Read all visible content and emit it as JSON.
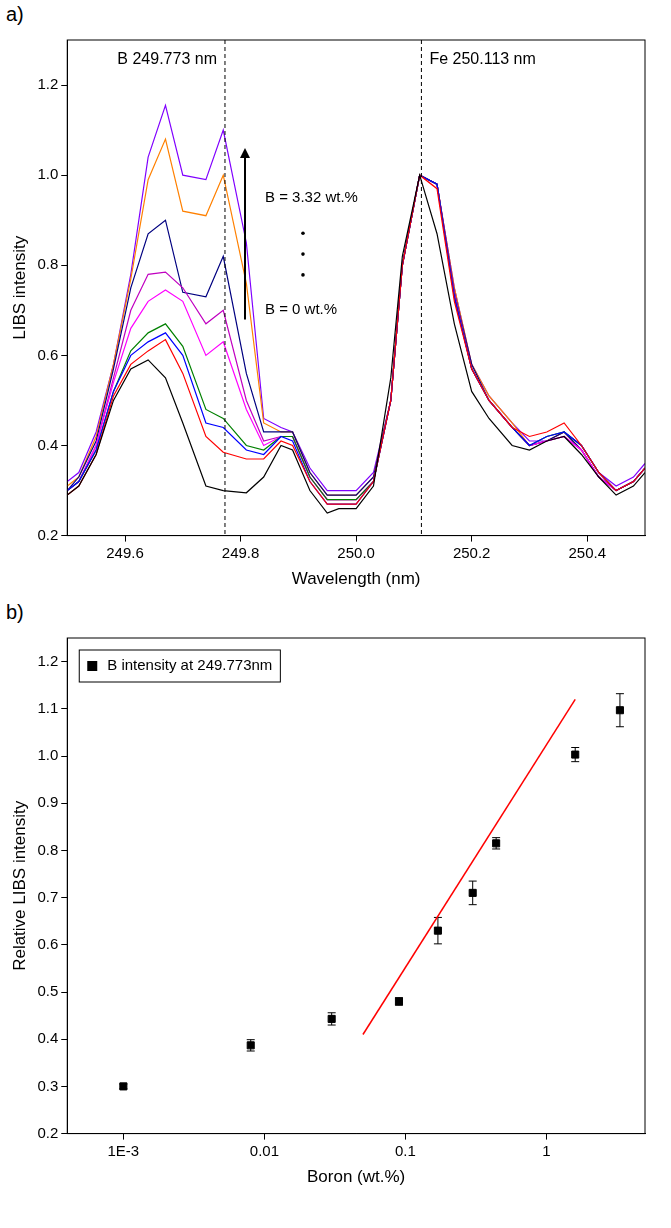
{
  "chart_data": [
    {
      "panel": "a)",
      "type": "line",
      "x_label": "Wavelength (nm)",
      "y_label": "LIBS intensity",
      "x": [
        249.5,
        249.52,
        249.55,
        249.58,
        249.61,
        249.64,
        249.67,
        249.7,
        249.74,
        249.77,
        249.81,
        249.84,
        249.87,
        249.89,
        249.92,
        249.95,
        249.97,
        250.0,
        250.03,
        250.06,
        250.08,
        250.11,
        250.14,
        250.17,
        250.2,
        250.23,
        250.27,
        250.3,
        250.33,
        250.36,
        250.39,
        250.42,
        250.45,
        250.48,
        250.5
      ],
      "series": [
        {
          "color": "#000000",
          "values": [
            0.29,
            0.31,
            0.38,
            0.5,
            0.57,
            0.59,
            0.55,
            0.45,
            0.31,
            0.3,
            0.295,
            0.33,
            0.4,
            0.39,
            0.3,
            0.25,
            0.26,
            0.26,
            0.31,
            0.55,
            0.82,
            1.0,
            0.87,
            0.67,
            0.52,
            0.46,
            0.4,
            0.39,
            0.41,
            0.42,
            0.38,
            0.33,
            0.29,
            0.31,
            0.34
          ]
        },
        {
          "color": "#ff0000",
          "values": [
            0.29,
            0.31,
            0.38,
            0.51,
            0.58,
            0.61,
            0.635,
            0.56,
            0.42,
            0.385,
            0.37,
            0.37,
            0.41,
            0.4,
            0.32,
            0.27,
            0.27,
            0.27,
            0.32,
            0.5,
            0.8,
            1.0,
            0.97,
            0.72,
            0.57,
            0.5,
            0.44,
            0.42,
            0.43,
            0.45,
            0.4,
            0.34,
            0.3,
            0.32,
            0.35
          ]
        },
        {
          "color": "#0000ff",
          "values": [
            0.3,
            0.32,
            0.39,
            0.52,
            0.6,
            0.63,
            0.65,
            0.6,
            0.45,
            0.44,
            0.39,
            0.38,
            0.42,
            0.41,
            0.32,
            0.27,
            0.27,
            0.27,
            0.32,
            0.5,
            0.8,
            1.0,
            0.98,
            0.73,
            0.57,
            0.5,
            0.44,
            0.4,
            0.42,
            0.43,
            0.4,
            0.34,
            0.3,
            0.32,
            0.35
          ]
        },
        {
          "color": "#008000",
          "values": [
            0.3,
            0.32,
            0.39,
            0.52,
            0.61,
            0.65,
            0.67,
            0.62,
            0.48,
            0.46,
            0.4,
            0.39,
            0.42,
            0.42,
            0.33,
            0.28,
            0.28,
            0.28,
            0.32,
            0.5,
            0.8,
            1.0,
            0.98,
            0.73,
            0.57,
            0.5,
            0.44,
            0.4,
            0.42,
            0.43,
            0.4,
            0.34,
            0.3,
            0.32,
            0.35
          ]
        },
        {
          "color": "#ff00ff",
          "values": [
            0.3,
            0.32,
            0.4,
            0.54,
            0.66,
            0.72,
            0.745,
            0.72,
            0.6,
            0.63,
            0.48,
            0.4,
            0.42,
            0.42,
            0.33,
            0.28,
            0.28,
            0.28,
            0.32,
            0.5,
            0.8,
            1.0,
            0.98,
            0.73,
            0.57,
            0.5,
            0.44,
            0.4,
            0.41,
            0.42,
            0.39,
            0.33,
            0.3,
            0.32,
            0.35
          ]
        },
        {
          "color": "#c000c0",
          "values": [
            0.3,
            0.32,
            0.4,
            0.55,
            0.7,
            0.78,
            0.785,
            0.75,
            0.67,
            0.7,
            0.5,
            0.41,
            0.42,
            0.42,
            0.33,
            0.28,
            0.28,
            0.28,
            0.32,
            0.5,
            0.8,
            1.0,
            0.98,
            0.74,
            0.57,
            0.5,
            0.44,
            0.4,
            0.41,
            0.42,
            0.39,
            0.33,
            0.3,
            0.32,
            0.35
          ]
        },
        {
          "color": "#000080",
          "values": [
            0.3,
            0.33,
            0.41,
            0.57,
            0.75,
            0.87,
            0.9,
            0.74,
            0.73,
            0.82,
            0.56,
            0.43,
            0.43,
            0.43,
            0.34,
            0.29,
            0.29,
            0.29,
            0.33,
            0.5,
            0.8,
            1.0,
            0.98,
            0.74,
            0.58,
            0.5,
            0.44,
            0.4,
            0.41,
            0.43,
            0.39,
            0.33,
            0.3,
            0.32,
            0.35
          ]
        },
        {
          "color": "#ff8000",
          "values": [
            0.31,
            0.33,
            0.42,
            0.58,
            0.77,
            0.99,
            1.08,
            0.92,
            0.91,
            1.0,
            0.76,
            0.45,
            0.43,
            0.43,
            0.34,
            0.29,
            0.29,
            0.29,
            0.33,
            0.5,
            0.8,
            1.0,
            0.98,
            0.75,
            0.58,
            0.51,
            0.45,
            0.4,
            0.41,
            0.43,
            0.39,
            0.33,
            0.3,
            0.32,
            0.35
          ]
        },
        {
          "color": "#8000ff",
          "values": [
            0.32,
            0.34,
            0.43,
            0.58,
            0.78,
            1.04,
            1.155,
            1.0,
            0.99,
            1.1,
            0.85,
            0.46,
            0.44,
            0.43,
            0.35,
            0.3,
            0.3,
            0.3,
            0.34,
            0.5,
            0.8,
            1.0,
            0.98,
            0.75,
            0.58,
            0.51,
            0.45,
            0.41,
            0.41,
            0.43,
            0.4,
            0.34,
            0.31,
            0.33,
            0.36
          ]
        }
      ],
      "xlim": [
        249.5,
        250.5
      ],
      "xticks": [
        249.6,
        249.8,
        {
          "value": 250,
          "label": "250.0"
        },
        250.2,
        250.4
      ],
      "ylim": [
        0.2,
        1.3
      ],
      "yticks": [
        0.2,
        0.4,
        0.6,
        0.8,
        {
          "value": 1,
          "label": "1.0"
        },
        1.2
      ],
      "grid": false,
      "vlines": [
        {
          "x": 249.773,
          "label": "B 249.773 nm"
        },
        {
          "x": 250.113,
          "label": "Fe 250.113 nm"
        }
      ],
      "annotations": [
        "B = 3.32 wt.%",
        "B = 0 wt.%"
      ]
    },
    {
      "panel": "b)",
      "type": "scatter",
      "log": "x",
      "x_label": "Boron (wt.%)",
      "y_label": "Relative LIBS intensity",
      "series": [
        {
          "name": "B intensity at 249.773nm",
          "color": "#000000",
          "marker": "square",
          "x": [
            0.001,
            0.008,
            0.03,
            0.09,
            0.17,
            0.3,
            0.44,
            1.6,
            3.32
          ],
          "values": [
            0.3,
            0.387,
            0.443,
            0.48,
            0.63,
            0.71,
            0.815,
            1.003,
            1.097
          ],
          "errors": [
            0.005,
            0.012,
            0.013,
            0.008,
            0.028,
            0.025,
            0.012,
            0.015,
            0.035
          ]
        },
        {
          "type": "line",
          "color": "#ff0000",
          "x": [
            0.05,
            1.6
          ],
          "values": [
            0.41,
            1.12
          ]
        }
      ],
      "xlim": [
        0.0004,
        5
      ],
      "xticks": [
        {
          "value": 0.001,
          "label": "1E-3"
        },
        0.01,
        0.1,
        1
      ],
      "ylim": [
        0.2,
        1.25
      ],
      "yticks": [
        0.2,
        0.3,
        0.4,
        0.5,
        0.6,
        0.7,
        0.8,
        0.9,
        {
          "value": 1,
          "label": "1.0"
        },
        1.1,
        1.2
      ],
      "legend": "upper left",
      "grid": false
    }
  ]
}
